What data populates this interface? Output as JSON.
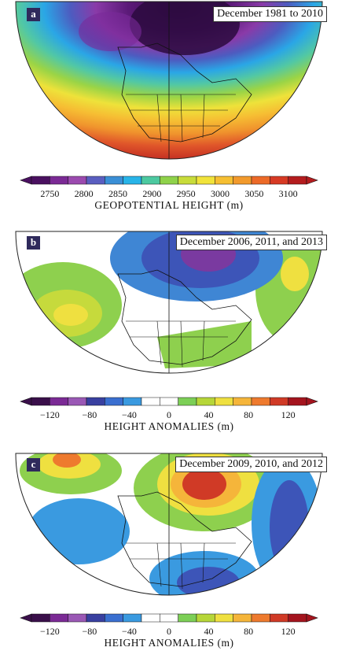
{
  "figure": {
    "panels": [
      {
        "letter": "a",
        "title": "December 1981 to 2010",
        "colorbar": {
          "ticks": [
            "2750",
            "2800",
            "2850",
            "2900",
            "2950",
            "3000",
            "3050",
            "3100"
          ],
          "colors": [
            "#4a1060",
            "#7b2a95",
            "#9b4aaf",
            "#5a5ec0",
            "#3a8fd6",
            "#28b4e8",
            "#4cc9a0",
            "#8fd24a",
            "#c8dc3a",
            "#f1e33a",
            "#f6bf32",
            "#f29a2c",
            "#ec6a28",
            "#d73a24",
            "#b41c1e"
          ],
          "caption": "GEOPOTENTIAL HEIGHT (m)"
        }
      },
      {
        "letter": "b",
        "title": "December 2006, 2011, and 2013",
        "colorbar": {
          "ticks": [
            "−120",
            "−80",
            "−40",
            "0",
            "40",
            "80",
            "120"
          ],
          "colors": [
            "#3a0f4a",
            "#7b2a95",
            "#9a58b5",
            "#3940a0",
            "#3a6fd0",
            "#3a9ae0",
            "#ffffff",
            "#ffffff",
            "#7ccf56",
            "#b6d638",
            "#efe040",
            "#f5b53a",
            "#ee7a2e",
            "#d03a26",
            "#a4141e"
          ],
          "caption": "HEIGHT ANOMALIES (m)"
        }
      },
      {
        "letter": "c",
        "title": "December 2009, 2010, and 2012",
        "colorbar": {
          "ticks": [
            "−120",
            "−80",
            "−40",
            "0",
            "40",
            "80",
            "120"
          ],
          "colors": [
            "#3a0f4a",
            "#7b2a95",
            "#9a58b5",
            "#3940a0",
            "#3a6fd0",
            "#3a9ae0",
            "#ffffff",
            "#ffffff",
            "#7ccf56",
            "#b6d638",
            "#efe040",
            "#f5b53a",
            "#ee7a2e",
            "#d03a26",
            "#a4141e"
          ],
          "caption": "HEIGHT ANOMALIES (m)"
        }
      }
    ]
  }
}
